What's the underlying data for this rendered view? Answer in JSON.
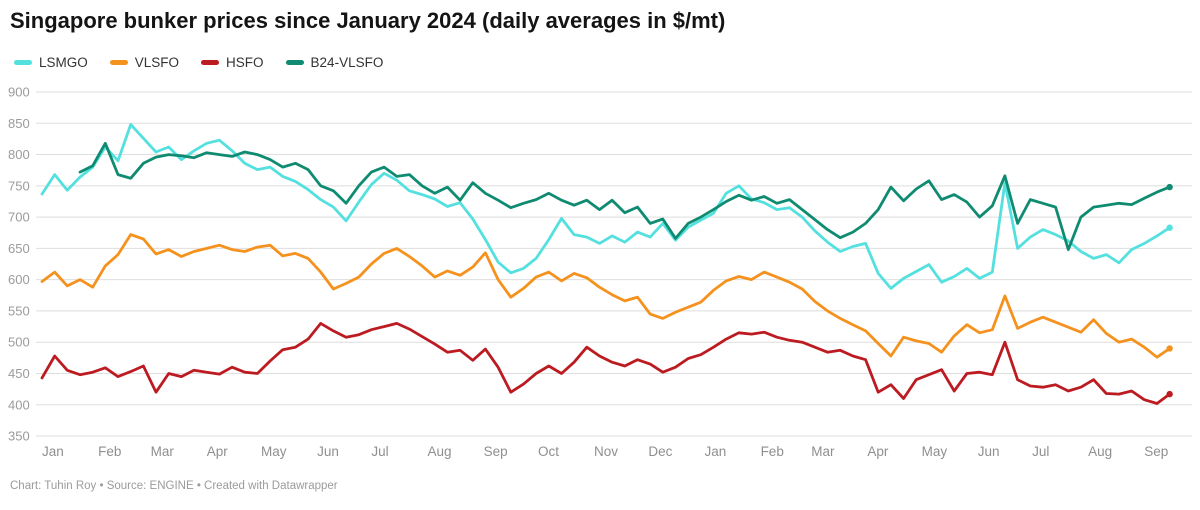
{
  "header": {
    "title": "Singapore bunker prices since January 2024 (daily averages in $/mt)"
  },
  "legend": {
    "items": [
      {
        "label": "LSMGO",
        "color": "#55e0e0"
      },
      {
        "label": "VLSFO",
        "color": "#f5921e"
      },
      {
        "label": "HSFO",
        "color": "#bc1b21"
      },
      {
        "label": "B24-VLSFO",
        "color": "#0f8b71"
      }
    ]
  },
  "footer": {
    "text": "Chart: Tuhin Roy • Source: ENGINE • Created with Datawrapper"
  },
  "chart_data": {
    "type": "line",
    "title": "Singapore bunker prices since January 2024 (daily averages in $/mt)",
    "unit": "$/mt",
    "grid": true,
    "legend_position": "top-left",
    "ylim": [
      350,
      900
    ],
    "y_ticks": [
      900,
      850,
      800,
      750,
      700,
      650,
      600,
      550,
      500,
      450,
      400,
      350
    ],
    "start_date": "2024-01-01",
    "point_interval_days": 7,
    "x_month_ticks": [
      {
        "label": "Jan",
        "day": 0
      },
      {
        "label": "Feb",
        "day": 31
      },
      {
        "label": "Mar",
        "day": 60
      },
      {
        "label": "Apr",
        "day": 91
      },
      {
        "label": "May",
        "day": 121
      },
      {
        "label": "Jun",
        "day": 152
      },
      {
        "label": "Jul",
        "day": 182
      },
      {
        "label": "Aug",
        "day": 213
      },
      {
        "label": "Sep",
        "day": 244
      },
      {
        "label": "Oct",
        "day": 274
      },
      {
        "label": "Nov",
        "day": 305
      },
      {
        "label": "Dec",
        "day": 335
      },
      {
        "label": "Jan",
        "day": 366
      },
      {
        "label": "Feb",
        "day": 397
      },
      {
        "label": "Mar",
        "day": 425
      },
      {
        "label": "Apr",
        "day": 456
      },
      {
        "label": "May",
        "day": 486
      },
      {
        "label": "Jun",
        "day": 517
      },
      {
        "label": "Jul",
        "day": 547
      },
      {
        "label": "Aug",
        "day": 578
      },
      {
        "label": "Sep",
        "day": 609
      }
    ],
    "series": [
      {
        "name": "LSMGO",
        "color": "#55e0e0",
        "values": [
          737,
          768,
          743,
          764,
          780,
          812,
          790,
          848,
          826,
          804,
          812,
          792,
          806,
          818,
          823,
          806,
          786,
          776,
          780,
          765,
          757,
          744,
          728,
          716,
          694,
          724,
          752,
          770,
          759,
          742,
          736,
          729,
          717,
          723,
          697,
          664,
          628,
          611,
          618,
          634,
          664,
          698,
          672,
          668,
          658,
          670,
          660,
          676,
          668,
          690,
          663,
          684,
          695,
          706,
          738,
          750,
          729,
          723,
          712,
          715,
          700,
          678,
          660,
          645,
          653,
          658,
          610,
          586,
          602,
          613,
          624,
          596,
          605,
          618,
          602,
          612,
          755,
          650,
          668,
          680,
          672,
          662,
          645,
          634,
          640,
          627,
          648,
          658,
          670,
          683
        ]
      },
      {
        "name": "VLSFO",
        "color": "#f5921e",
        "values": [
          597,
          612,
          590,
          600,
          588,
          622,
          640,
          672,
          665,
          641,
          648,
          637,
          645,
          650,
          655,
          648,
          645,
          652,
          655,
          638,
          642,
          634,
          612,
          585,
          594,
          604,
          625,
          642,
          650,
          637,
          622,
          604,
          614,
          607,
          620,
          643,
          600,
          572,
          586,
          604,
          612,
          598,
          610,
          603,
          588,
          576,
          566,
          572,
          545,
          538,
          548,
          556,
          564,
          583,
          598,
          605,
          600,
          612,
          604,
          596,
          585,
          565,
          550,
          538,
          528,
          518,
          498,
          478,
          508,
          502,
          498,
          484,
          510,
          528,
          515,
          520,
          574,
          522,
          532,
          540,
          532,
          524,
          516,
          536,
          514,
          500,
          505,
          492,
          476,
          490
        ]
      },
      {
        "name": "HSFO",
        "color": "#bc1b21",
        "values": [
          443,
          478,
          455,
          448,
          452,
          459,
          445,
          453,
          462,
          420,
          450,
          445,
          455,
          452,
          449,
          460,
          452,
          450,
          470,
          488,
          492,
          505,
          530,
          518,
          508,
          512,
          520,
          525,
          530,
          521,
          509,
          497,
          484,
          487,
          471,
          489,
          460,
          420,
          433,
          450,
          462,
          450,
          468,
          492,
          478,
          468,
          462,
          472,
          465,
          452,
          460,
          474,
          480,
          492,
          505,
          515,
          513,
          516,
          508,
          503,
          500,
          492,
          484,
          487,
          478,
          472,
          420,
          432,
          410,
          440,
          448,
          456,
          422,
          450,
          452,
          448,
          500,
          440,
          430,
          428,
          432,
          422,
          428,
          440,
          418,
          417,
          422,
          408,
          402,
          417
        ]
      },
      {
        "name": "B24-VLSFO",
        "color": "#0f8b71",
        "values": [
          null,
          null,
          null,
          772,
          782,
          818,
          768,
          762,
          786,
          796,
          800,
          798,
          795,
          803,
          800,
          797,
          804,
          800,
          792,
          780,
          786,
          776,
          750,
          742,
          722,
          750,
          772,
          780,
          765,
          768,
          750,
          738,
          748,
          727,
          755,
          738,
          727,
          715,
          722,
          728,
          738,
          727,
          719,
          727,
          712,
          727,
          707,
          716,
          690,
          697,
          666,
          690,
          700,
          712,
          725,
          735,
          727,
          733,
          722,
          728,
          712,
          696,
          680,
          667,
          676,
          690,
          712,
          748,
          726,
          745,
          758,
          728,
          736,
          724,
          700,
          718,
          766,
          690,
          728,
          722,
          716,
          648,
          700,
          716,
          719,
          722,
          720,
          730,
          740,
          748
        ]
      }
    ]
  }
}
